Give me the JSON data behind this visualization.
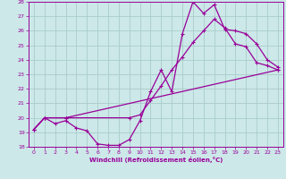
{
  "xlabel": "Windchill (Refroidissement éolien,°C)",
  "bg_color": "#cce8e8",
  "grid_color": "#aacccc",
  "line_color": "#990099",
  "xlim": [
    -0.5,
    23.5
  ],
  "ylim": [
    18,
    28
  ],
  "xticks": [
    0,
    1,
    2,
    3,
    4,
    5,
    6,
    7,
    8,
    9,
    10,
    11,
    12,
    13,
    14,
    15,
    16,
    17,
    18,
    19,
    20,
    21,
    22,
    23
  ],
  "yticks": [
    18,
    19,
    20,
    21,
    22,
    23,
    24,
    25,
    26,
    27,
    28
  ],
  "line1_x": [
    0,
    1,
    2,
    3,
    4,
    5,
    6,
    7,
    8,
    9,
    10,
    11,
    12,
    13,
    14,
    15,
    16,
    17,
    18,
    19,
    20,
    21,
    22,
    23
  ],
  "line1_y": [
    19.2,
    20.0,
    19.6,
    19.8,
    19.3,
    19.1,
    18.2,
    18.1,
    18.1,
    18.5,
    19.8,
    21.8,
    23.3,
    21.8,
    25.8,
    28.0,
    27.2,
    27.8,
    26.1,
    26.0,
    25.8,
    25.1,
    24.0,
    23.5
  ],
  "line2_x": [
    0,
    1,
    3,
    9,
    10,
    11,
    12,
    13,
    14,
    15,
    16,
    17,
    18,
    19,
    20,
    21,
    22,
    23
  ],
  "line2_y": [
    19.2,
    20.0,
    20.0,
    20.0,
    20.2,
    21.2,
    22.2,
    23.3,
    24.2,
    25.2,
    26.0,
    26.8,
    26.2,
    25.1,
    24.9,
    23.8,
    23.6,
    23.3
  ],
  "line3_x": [
    0,
    1,
    3,
    23
  ],
  "line3_y": [
    19.2,
    20.0,
    20.0,
    23.3
  ]
}
